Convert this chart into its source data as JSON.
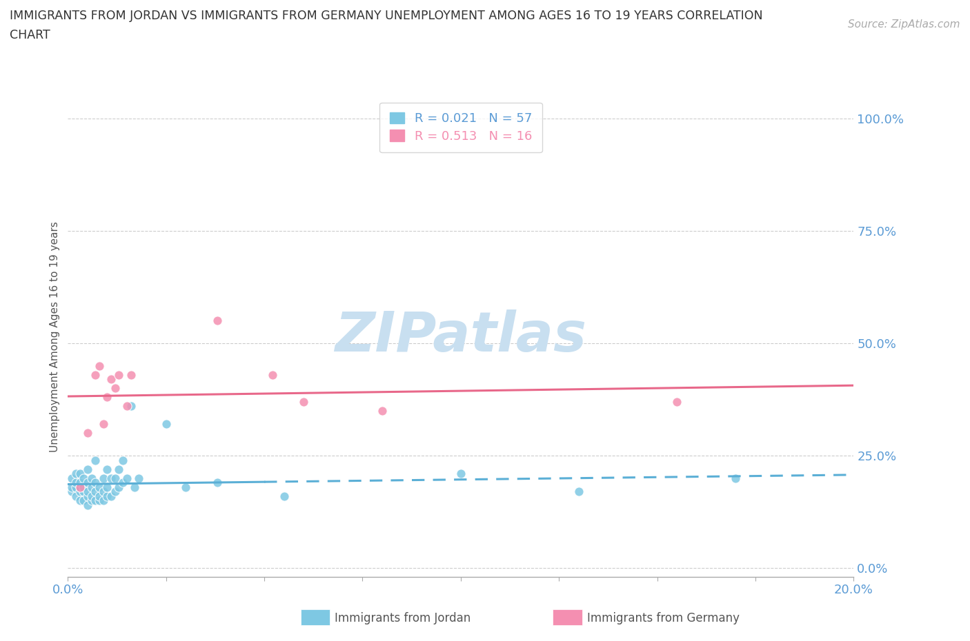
{
  "title_line1": "IMMIGRANTS FROM JORDAN VS IMMIGRANTS FROM GERMANY UNEMPLOYMENT AMONG AGES 16 TO 19 YEARS CORRELATION",
  "title_line2": "CHART",
  "source_text": "Source: ZipAtlas.com",
  "ylabel": "Unemployment Among Ages 16 to 19 years",
  "xlim": [
    0.0,
    0.2
  ],
  "ylim": [
    -0.02,
    1.05
  ],
  "yticks": [
    0.0,
    0.25,
    0.5,
    0.75,
    1.0
  ],
  "ytick_labels": [
    "0.0%",
    "25.0%",
    "50.0%",
    "75.0%",
    "100.0%"
  ],
  "xticks": [
    0.0,
    0.025,
    0.05,
    0.075,
    0.1,
    0.125,
    0.15,
    0.175,
    0.2
  ],
  "xtick_labels": [
    "0.0%",
    "",
    "",
    "",
    "",
    "",
    "",
    "",
    "20.0%"
  ],
  "jordan_scatter_x": [
    0.001,
    0.001,
    0.001,
    0.002,
    0.002,
    0.002,
    0.002,
    0.003,
    0.003,
    0.003,
    0.003,
    0.003,
    0.004,
    0.004,
    0.004,
    0.004,
    0.005,
    0.005,
    0.005,
    0.005,
    0.005,
    0.006,
    0.006,
    0.006,
    0.006,
    0.007,
    0.007,
    0.007,
    0.007,
    0.008,
    0.008,
    0.008,
    0.009,
    0.009,
    0.009,
    0.01,
    0.01,
    0.01,
    0.011,
    0.011,
    0.012,
    0.012,
    0.013,
    0.013,
    0.014,
    0.014,
    0.015,
    0.016,
    0.017,
    0.018,
    0.025,
    0.03,
    0.038,
    0.055,
    0.1,
    0.13,
    0.17
  ],
  "jordan_scatter_y": [
    0.17,
    0.18,
    0.2,
    0.16,
    0.18,
    0.19,
    0.21,
    0.15,
    0.17,
    0.18,
    0.19,
    0.21,
    0.15,
    0.17,
    0.18,
    0.2,
    0.14,
    0.16,
    0.17,
    0.19,
    0.22,
    0.15,
    0.16,
    0.18,
    0.2,
    0.15,
    0.17,
    0.19,
    0.24,
    0.15,
    0.16,
    0.18,
    0.15,
    0.17,
    0.2,
    0.16,
    0.18,
    0.22,
    0.16,
    0.2,
    0.17,
    0.2,
    0.18,
    0.22,
    0.19,
    0.24,
    0.2,
    0.36,
    0.18,
    0.2,
    0.32,
    0.18,
    0.19,
    0.16,
    0.21,
    0.17,
    0.2
  ],
  "germany_scatter_x": [
    0.003,
    0.005,
    0.007,
    0.008,
    0.009,
    0.01,
    0.011,
    0.012,
    0.013,
    0.015,
    0.016,
    0.038,
    0.052,
    0.06,
    0.08,
    0.155
  ],
  "germany_scatter_y": [
    0.18,
    0.3,
    0.43,
    0.45,
    0.32,
    0.38,
    0.42,
    0.4,
    0.43,
    0.36,
    0.43,
    0.55,
    0.43,
    0.37,
    0.35,
    0.37
  ],
  "jordan_R": 0.021,
  "jordan_N": 57,
  "germany_R": 0.513,
  "germany_N": 16,
  "jordan_color": "#7EC8E3",
  "germany_color": "#F48FB1",
  "jordan_line_color": "#5BAFD6",
  "germany_line_color": "#E8688A",
  "background_color": "#ffffff",
  "grid_color": "#cccccc",
  "axis_label_color": "#5b9bd5",
  "watermark_text": "ZIPatlas",
  "watermark_color": "#c8dff0"
}
